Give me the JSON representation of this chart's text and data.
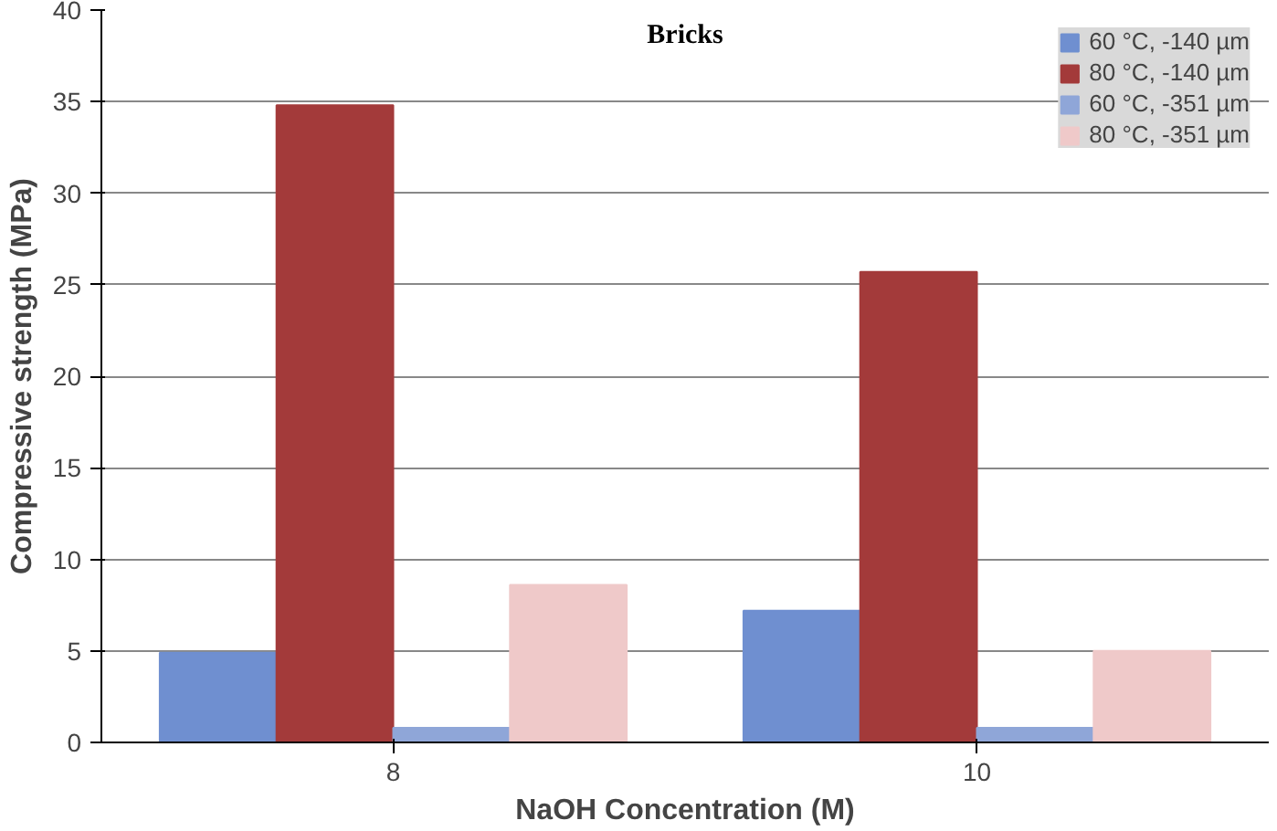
{
  "chart_data": {
    "type": "bar",
    "title": "Bricks",
    "xlabel": "NaOH Concentration (M)",
    "ylabel": "Compressive strength (MPa)",
    "categories": [
      "8",
      "10"
    ],
    "series": [
      {
        "name": "60 °C, -140 µm",
        "color": "#6f8fd0",
        "values": [
          4.9,
          7.2
        ]
      },
      {
        "name": "80 °C, -140 µm",
        "color": "#a33a3a",
        "values": [
          34.8,
          25.7
        ]
      },
      {
        "name": "60 °C, -351 µm",
        "color": "#8fa6d8",
        "values": [
          0.8,
          0.8
        ]
      },
      {
        "name": "80 °C, -351 µm",
        "color": "#efc9c9",
        "values": [
          8.6,
          5.0
        ]
      }
    ],
    "ylim": [
      0,
      40
    ],
    "yticks": [
      0,
      5,
      10,
      15,
      20,
      25,
      30,
      35,
      40
    ],
    "grid": "y",
    "legend": "top right"
  }
}
